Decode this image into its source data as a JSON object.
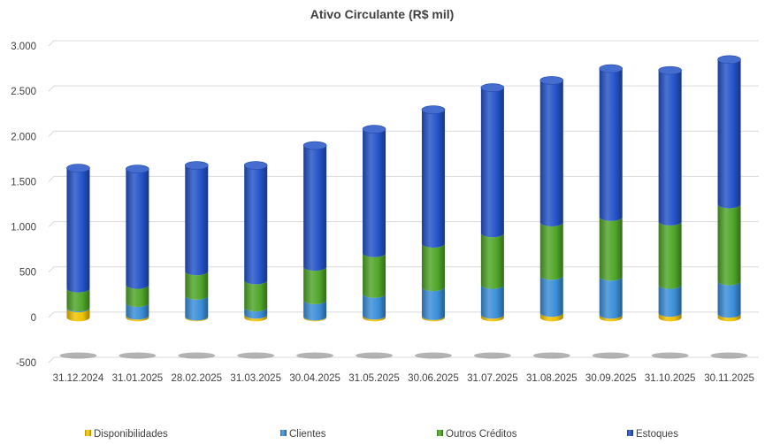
{
  "chart_data": {
    "type": "bar",
    "stacked": true,
    "style": "3d-cylinder",
    "title": "Ativo Circulante (R$ mil)",
    "xlabel": "",
    "ylabel": "",
    "ylim": [
      -500,
      3000
    ],
    "yticks": [
      3000,
      2500,
      2000,
      1500,
      1000,
      500,
      0,
      -500
    ],
    "ytick_labels": [
      "3.000",
      "2.500",
      "2.000",
      "1.500",
      "1.000",
      "500",
      "0",
      "-500"
    ],
    "grid": true,
    "legend_position": "bottom",
    "categories": [
      "31.12.2024",
      "31.01.2025",
      "28.02.2025",
      "31.03.2025",
      "30.04.2025",
      "31.05.2025",
      "30.06.2025",
      "31.07.2025",
      "31.08.2025",
      "30.09.2025",
      "31.10.2025",
      "30.11.2025"
    ],
    "series": [
      {
        "name": "Disponibilidades",
        "color": "#f2c200",
        "values": [
          100,
          20,
          10,
          30,
          10,
          20,
          15,
          30,
          50,
          30,
          50,
          40
        ]
      },
      {
        "name": "Clientes",
        "color": "#3a8ed8",
        "values": [
          10,
          140,
          230,
          80,
          180,
          240,
          320,
          330,
          410,
          420,
          310,
          360
        ]
      },
      {
        "name": "Outros Créditos",
        "color": "#4fa528",
        "values": [
          210,
          200,
          270,
          300,
          370,
          450,
          480,
          570,
          590,
          660,
          700,
          850
        ]
      },
      {
        "name": "Estoques",
        "color": "#2453c8",
        "values": [
          1330,
          1280,
          1170,
          1270,
          1340,
          1370,
          1480,
          1610,
          1570,
          1640,
          1670,
          1600
        ]
      }
    ]
  }
}
